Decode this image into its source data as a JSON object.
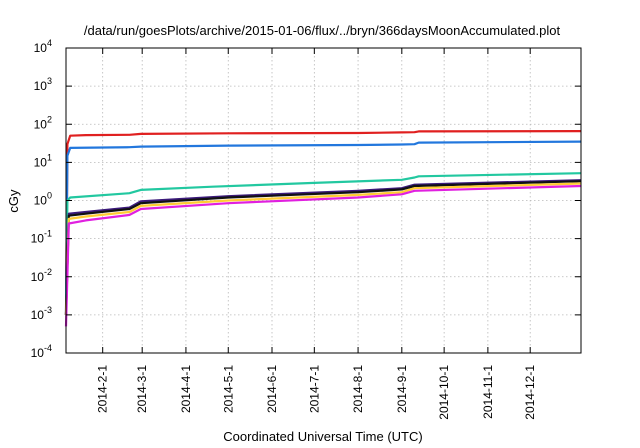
{
  "chart_data": {
    "type": "line",
    "title": "/data/run/goesPlots/archive/2015-01-06/flux/../bryn/366daysMoonAccumulated.plot",
    "xlabel": "Coordinated Universal Time (UTC)",
    "ylabel": "cGy",
    "y_scale": "log",
    "ylim": [
      0.0001,
      10000
    ],
    "xlim": [
      "2014-01-06",
      "2015-01-06"
    ],
    "grid": true,
    "y_ticks": [
      {
        "value": 0.0001,
        "base": "10",
        "exp": "-4"
      },
      {
        "value": 0.001,
        "base": "10",
        "exp": "-3"
      },
      {
        "value": 0.01,
        "base": "10",
        "exp": "-2"
      },
      {
        "value": 0.1,
        "base": "10",
        "exp": "-1"
      },
      {
        "value": 1,
        "base": "10",
        "exp": "0"
      },
      {
        "value": 10,
        "base": "10",
        "exp": "1"
      },
      {
        "value": 100,
        "base": "10",
        "exp": "2"
      },
      {
        "value": 1000,
        "base": "10",
        "exp": "3"
      },
      {
        "value": 10000,
        "base": "10",
        "exp": "4"
      }
    ],
    "x_ticks": [
      "2014-2-1",
      "2014-3-1",
      "2014-4-1",
      "2014-5-1",
      "2014-6-1",
      "2014-7-1",
      "2014-8-1",
      "2014-9-1",
      "2014-10-1",
      "2014-11-1",
      "2014-12-1"
    ],
    "x_tick_dates": [
      "2014-02-01",
      "2014-03-01",
      "2014-04-01",
      "2014-05-01",
      "2014-06-01",
      "2014-07-01",
      "2014-08-01",
      "2014-09-01",
      "2014-10-01",
      "2014-11-01",
      "2014-12-01"
    ],
    "series": [
      {
        "color": "#e02020",
        "x": [
          "2014-01-06",
          "2014-01-07",
          "2014-01-09",
          "2014-01-20",
          "2014-02-20",
          "2014-02-28",
          "2014-05-01",
          "2014-08-01",
          "2014-09-01",
          "2014-09-10",
          "2014-09-13",
          "2015-01-06"
        ],
        "y": [
          0.001,
          30,
          50,
          52,
          53,
          56,
          58,
          59,
          61,
          62,
          65,
          66
        ]
      },
      {
        "color": "#2277dd",
        "x": [
          "2014-01-06",
          "2014-01-07",
          "2014-01-09",
          "2014-02-20",
          "2014-02-28",
          "2014-05-01",
          "2014-08-01",
          "2014-09-01",
          "2014-09-10",
          "2014-09-13",
          "2015-01-06"
        ],
        "y": [
          0.001,
          15,
          24,
          25,
          26,
          27.5,
          28.5,
          29.5,
          30,
          33,
          35
        ]
      },
      {
        "color": "#22c8a0",
        "x": [
          "2014-01-06",
          "2014-01-07",
          "2014-01-09",
          "2014-02-20",
          "2014-02-28",
          "2014-04-20",
          "2014-07-01",
          "2014-09-01",
          "2014-09-10",
          "2014-09-13",
          "2015-01-06"
        ],
        "y": [
          0.001,
          1.0,
          1.2,
          1.55,
          1.9,
          2.3,
          2.9,
          3.5,
          4.0,
          4.3,
          5.2
        ]
      },
      {
        "color": "#3b1a7a",
        "x": [
          "2014-01-06",
          "2014-01-08",
          "2014-01-20",
          "2014-02-20",
          "2014-02-28",
          "2014-05-01",
          "2014-08-01",
          "2014-09-01",
          "2014-09-10",
          "2015-01-06"
        ],
        "y": [
          0.001,
          0.45,
          0.5,
          0.65,
          0.95,
          1.3,
          1.8,
          2.1,
          2.6,
          3.4
        ]
      },
      {
        "color": "#111111",
        "x": [
          "2014-01-06",
          "2014-01-08",
          "2014-01-20",
          "2014-02-20",
          "2014-02-28",
          "2014-05-01",
          "2014-08-01",
          "2014-09-01",
          "2014-09-10",
          "2015-01-06"
        ],
        "y": [
          0.001,
          0.4,
          0.45,
          0.6,
          0.85,
          1.2,
          1.65,
          1.95,
          2.4,
          3.2
        ]
      },
      {
        "color": "#ffcc33",
        "x": [
          "2014-01-06",
          "2014-01-08",
          "2014-01-20",
          "2014-02-20",
          "2014-02-28",
          "2014-05-01",
          "2014-08-01",
          "2014-09-01",
          "2014-09-10",
          "2015-01-06"
        ],
        "y": [
          0.001,
          0.33,
          0.38,
          0.5,
          0.72,
          1.0,
          1.4,
          1.65,
          2.1,
          2.8
        ]
      },
      {
        "color": "#e020e0",
        "x": [
          "2014-01-06",
          "2014-01-08",
          "2014-01-20",
          "2014-02-20",
          "2014-02-28",
          "2014-05-01",
          "2014-08-01",
          "2014-09-01",
          "2014-09-10",
          "2015-01-06"
        ],
        "y": [
          0.0005,
          0.25,
          0.3,
          0.42,
          0.6,
          0.85,
          1.2,
          1.45,
          1.8,
          2.4
        ]
      }
    ]
  }
}
